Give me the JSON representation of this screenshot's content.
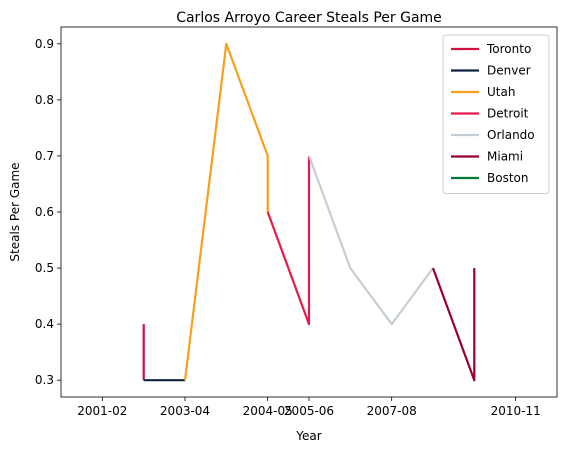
{
  "chart_data": {
    "type": "line",
    "title": "Carlos Arroyo Career Steals Per Game",
    "xlabel": "Year",
    "ylabel": "Steals Per Game",
    "x_ticks": [
      "2001-02",
      "2003-04",
      "2004-05",
      "2005-06",
      "2007-08",
      "2010-11"
    ],
    "y_ticks": [
      "0.3",
      "0.4",
      "0.5",
      "0.6",
      "0.7",
      "0.8",
      "0.9"
    ],
    "ylim": [
      0.27,
      0.93
    ],
    "legend_position": "top-right",
    "series": [
      {
        "name": "Toronto",
        "color": "#CE1141",
        "points": [
          [
            2001.0,
            0.4
          ],
          [
            2001.0,
            0.3
          ]
        ]
      },
      {
        "name": "Denver",
        "color": "#0E2240",
        "points": [
          [
            2001.0,
            0.3
          ],
          [
            2002.0,
            0.3
          ]
        ]
      },
      {
        "name": "Utah",
        "color": "#F9A01B",
        "points": [
          [
            2002.0,
            0.3
          ],
          [
            2003.0,
            0.9
          ],
          [
            2004.0,
            0.7
          ],
          [
            2004.0,
            0.6
          ]
        ]
      },
      {
        "name": "Detroit",
        "color": "#E31B4B",
        "points": [
          [
            2004.0,
            0.6
          ],
          [
            2005.0,
            0.4
          ],
          [
            2005.0,
            0.7
          ]
        ]
      },
      {
        "name": "Orlando",
        "color": "#C4CED4",
        "points": [
          [
            2005.0,
            0.7
          ],
          [
            2006.0,
            0.5
          ],
          [
            2007.0,
            0.4
          ],
          [
            2008.0,
            0.5
          ]
        ]
      },
      {
        "name": "Miami",
        "color": "#98002E",
        "points": [
          [
            2008.0,
            0.5
          ],
          [
            2009.0,
            0.3
          ],
          [
            2009.0,
            0.5
          ]
        ]
      },
      {
        "name": "Boston",
        "color": "#007A33",
        "points": []
      }
    ]
  }
}
